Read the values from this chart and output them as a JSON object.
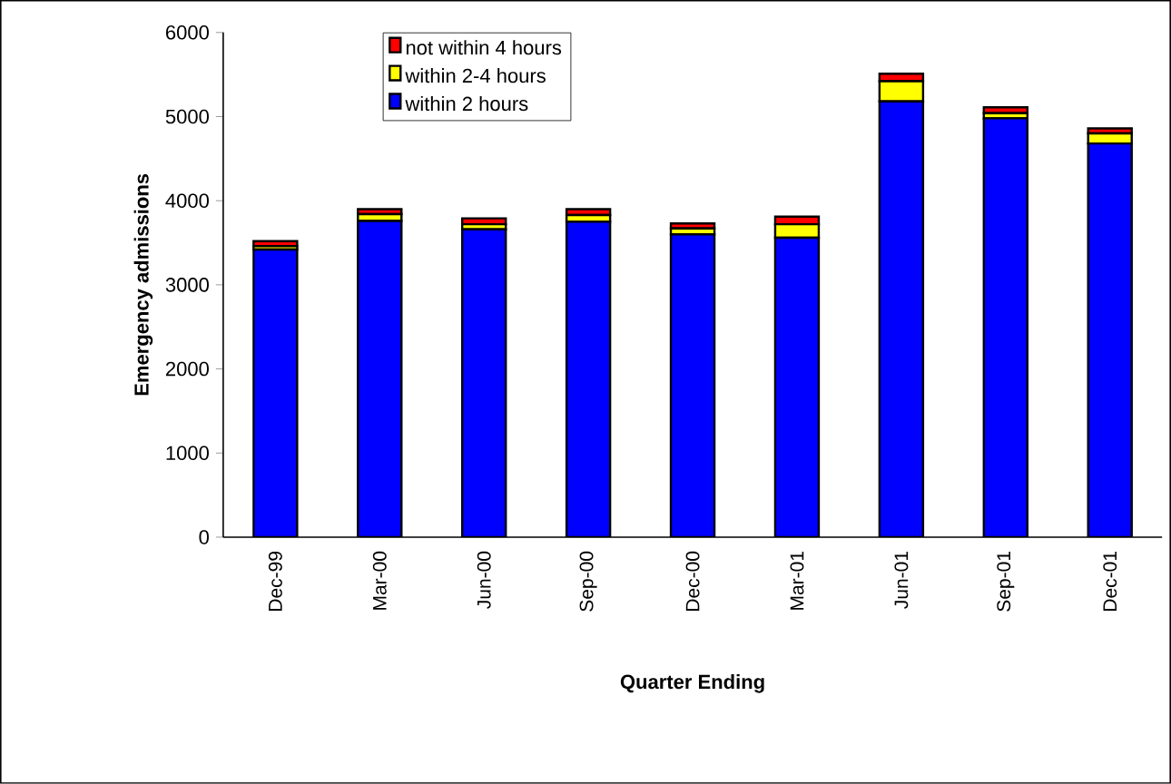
{
  "chart_data": {
    "type": "bar",
    "stacked": true,
    "xlabel": "Quarter Ending",
    "ylabel": "Emergency admissions",
    "categories": [
      "Dec-99",
      "Mar-00",
      "Jun-00",
      "Sep-00",
      "Dec-00",
      "Mar-01",
      "Jun-01",
      "Sep-01",
      "Dec-01"
    ],
    "series": [
      {
        "name": "within 2 hours",
        "color": "#0000ff",
        "values": [
          3420,
          3760,
          3660,
          3750,
          3600,
          3560,
          5180,
          4980,
          4680
        ]
      },
      {
        "name": "within 2-4 hours",
        "color": "#ffff00",
        "values": [
          40,
          80,
          60,
          80,
          70,
          160,
          240,
          60,
          120
        ]
      },
      {
        "name": "not within 4 hours",
        "color": "#ff0000",
        "values": [
          60,
          60,
          70,
          70,
          60,
          90,
          90,
          70,
          60
        ]
      }
    ],
    "ylim": [
      0,
      6000
    ],
    "yticks": [
      0,
      1000,
      2000,
      3000,
      4000,
      5000,
      6000
    ],
    "legend": "top left"
  }
}
